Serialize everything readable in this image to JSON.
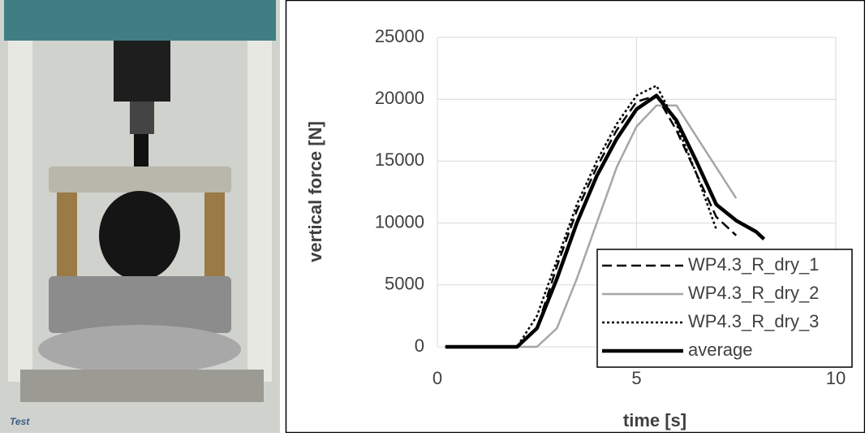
{
  "photo": {
    "label": "Test"
  },
  "chart_data": {
    "type": "line",
    "xlabel": "time [s]",
    "ylabel": "vertical force [N]",
    "x": [
      0.2,
      1,
      2,
      2.5,
      3,
      3.5,
      4,
      4.5,
      5,
      5.5,
      6,
      6.5,
      7,
      7.5,
      8,
      8.2
    ],
    "series": [
      {
        "name": "WP4.3_R_dry_1",
        "color": "#000000",
        "style": "dashed",
        "width": 2.5,
        "values": [
          0,
          0,
          0,
          1500,
          6500,
          11000,
          14500,
          17500,
          19800,
          20300,
          17500,
          14000,
          10500,
          9000,
          null,
          null
        ]
      },
      {
        "name": "WP4.3_R_dry_2",
        "color": "#a6a6a6",
        "style": "solid",
        "width": 2.5,
        "values": [
          0,
          0,
          0,
          0,
          1500,
          5500,
          10000,
          14500,
          17800,
          19500,
          19500,
          17000,
          14500,
          12000,
          null,
          null
        ]
      },
      {
        "name": "WP4.3_R_dry_3",
        "color": "#000000",
        "style": "dotted",
        "width": 2.5,
        "values": [
          0,
          0,
          0,
          2500,
          7000,
          11500,
          15000,
          18000,
          20300,
          21100,
          18000,
          14000,
          9500,
          null,
          null,
          null
        ]
      },
      {
        "name": "average",
        "color": "#000000",
        "style": "solid",
        "width": 4.5,
        "values": [
          0,
          0,
          0,
          1500,
          5500,
          10000,
          13800,
          16800,
          19200,
          20300,
          18300,
          15000,
          11500,
          10200,
          9300,
          8700
        ]
      }
    ],
    "xlim": [
      0,
      10
    ],
    "xticks": [
      0,
      5,
      10
    ],
    "ylim": [
      0,
      25000
    ],
    "yticks": [
      0,
      5000,
      10000,
      15000,
      20000,
      25000
    ],
    "grid": true,
    "legend": "lower right"
  }
}
